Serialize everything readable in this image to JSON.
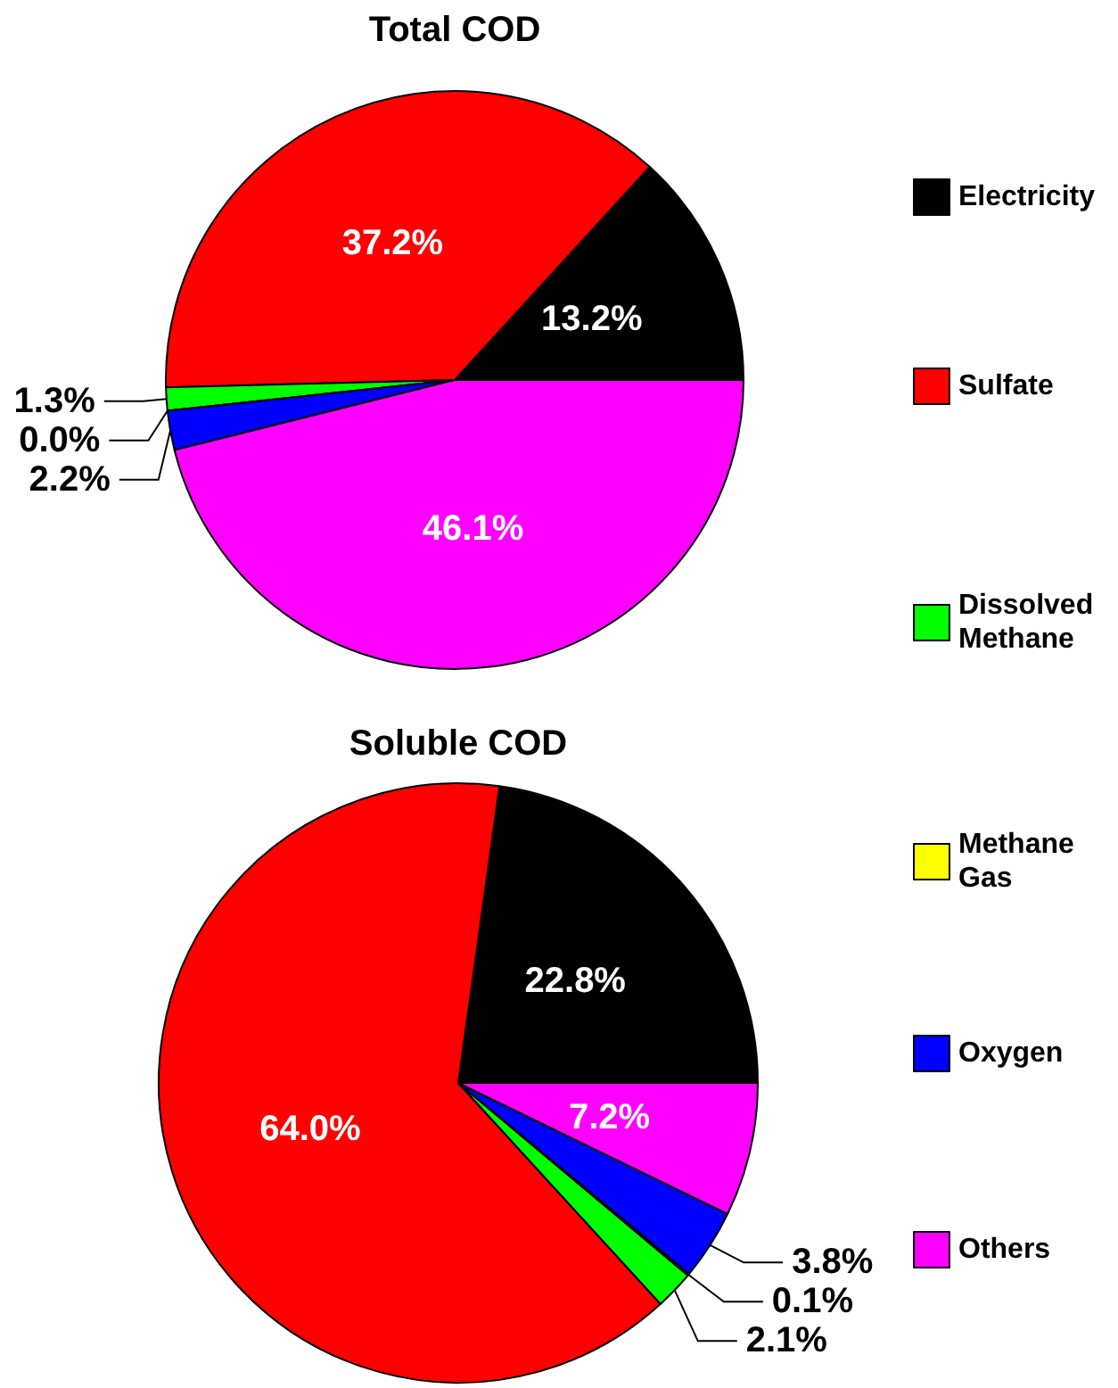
{
  "chart_data": [
    {
      "type": "pie",
      "title": "Total COD",
      "categories": [
        "Electricity",
        "Sulfate",
        "Dissolved Methane",
        "Methane Gas",
        "Oxygen",
        "Others"
      ],
      "values": [
        13.2,
        37.2,
        1.3,
        0.0,
        2.2,
        46.1
      ],
      "colors": [
        "#000000",
        "#ff0000",
        "#00ff00",
        "#ffff00",
        "#0000ff",
        "#ff00ff"
      ],
      "value_labels": [
        "13.2%",
        "37.2%",
        "1.3%",
        "0.0%",
        "2.2%",
        "46.1%"
      ],
      "legend": "right"
    },
    {
      "type": "pie",
      "title": "Soluble COD",
      "categories": [
        null,
        null,
        null,
        null,
        null,
        null
      ],
      "values": [
        22.8,
        64.0,
        2.1,
        0.1,
        3.8,
        7.2
      ],
      "colors": [
        "#000000",
        "#ff0000",
        "#00ff00",
        "#ffff00",
        "#0000ff",
        "#ff00ff"
      ],
      "value_labels": [
        "22.8%",
        "64.0%",
        "2.1%",
        "0.1%",
        "3.8%",
        "7.2%"
      ]
    }
  ]
}
